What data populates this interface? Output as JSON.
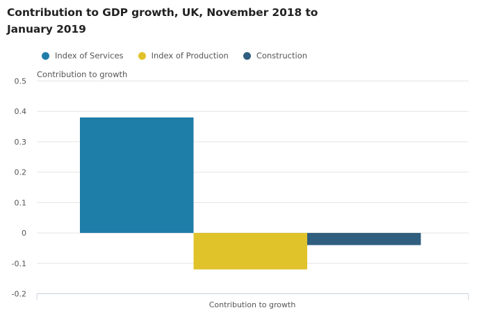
{
  "chart_data": {
    "type": "bar",
    "title": "Contribution to GDP growth, UK, November 2018 to January 2019",
    "ylabel": "Contribution to growth",
    "xlabel": "",
    "categories": [
      "Contribution to growth"
    ],
    "series": [
      {
        "name": "Index of Services",
        "color": "#206095",
        "values": [
          0.38
        ]
      },
      {
        "name": "Index of Production",
        "color": "#e0c22b",
        "values": [
          -0.12
        ]
      },
      {
        "name": "Construction",
        "color": "#2e5f7f",
        "values": [
          -0.04
        ]
      }
    ],
    "ylim": [
      -0.2,
      0.5
    ],
    "yticks": [
      0.5,
      0.4,
      0.3,
      0.2,
      0.1,
      0,
      -0.1,
      -0.2
    ],
    "ytick_labels": [
      "0.5",
      "0.4",
      "0.3",
      "0.2",
      "0.1",
      "0",
      "-0.1",
      "-0.2"
    ],
    "grid": true,
    "legend_position": "top-left"
  },
  "colors": {
    "services": "#1f7ea8",
    "production": "#e0c22b",
    "construction": "#2f5e7e",
    "gridline": "#e3e3e3",
    "axis": "#c8d0de"
  }
}
